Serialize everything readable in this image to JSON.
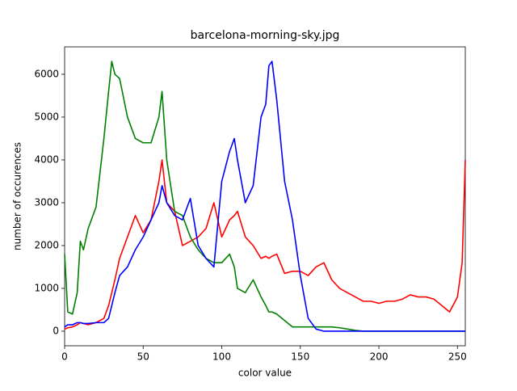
{
  "chart_data": {
    "type": "line",
    "title": "barcelona-morning-sky.jpg",
    "x_label": "color value",
    "y_label": "number of occurences",
    "x": [
      0,
      2,
      5,
      8,
      10,
      12,
      15,
      20,
      25,
      28,
      30,
      32,
      35,
      40,
      45,
      50,
      55,
      60,
      62,
      65,
      70,
      75,
      80,
      85,
      90,
      95,
      100,
      105,
      108,
      110,
      115,
      120,
      125,
      128,
      130,
      132,
      135,
      140,
      145,
      150,
      155,
      160,
      165,
      170,
      175,
      180,
      185,
      190,
      195,
      200,
      205,
      210,
      215,
      220,
      225,
      230,
      235,
      240,
      245,
      250,
      253,
      255
    ],
    "series": [
      {
        "color": "#ff0000",
        "values": [
          50,
          80,
          100,
          150,
          200,
          180,
          150,
          200,
          300,
          600,
          900,
          1200,
          1700,
          2200,
          2700,
          2300,
          2600,
          3500,
          4000,
          3000,
          2800,
          2000,
          2100,
          2200,
          2400,
          3000,
          2200,
          2600,
          2700,
          2800,
          2200,
          2000,
          1700,
          1750,
          1700,
          1750,
          1800,
          1350,
          1400,
          1400,
          1300,
          1500,
          1600,
          1200,
          1000,
          900,
          800,
          700,
          700,
          650,
          700,
          700,
          750,
          850,
          800,
          800,
          750,
          600,
          450,
          800,
          1600,
          4000
        ]
      },
      {
        "color": "#008000",
        "values": [
          1800,
          450,
          400,
          900,
          2100,
          1900,
          2400,
          2900,
          4500,
          5600,
          6300,
          6000,
          5900,
          5000,
          4500,
          4400,
          4400,
          5000,
          5600,
          4000,
          2800,
          2700,
          2200,
          1900,
          1700,
          1600,
          1600,
          1800,
          1500,
          1000,
          900,
          1200,
          800,
          600,
          450,
          450,
          400,
          250,
          100,
          100,
          100,
          100,
          100,
          100,
          80,
          50,
          20,
          0,
          0,
          0,
          0,
          0,
          0,
          0,
          0,
          0,
          0,
          0,
          0,
          0,
          0,
          0
        ]
      },
      {
        "color": "#0000ff",
        "values": [
          100,
          150,
          150,
          200,
          200,
          180,
          180,
          200,
          200,
          300,
          600,
          900,
          1300,
          1500,
          1900,
          2200,
          2600,
          3000,
          3400,
          3000,
          2700,
          2600,
          3100,
          2000,
          1700,
          1500,
          3500,
          4200,
          4500,
          4000,
          3000,
          3400,
          5000,
          5300,
          6200,
          6300,
          5400,
          3500,
          2600,
          1300,
          300,
          50,
          0,
          0,
          0,
          0,
          0,
          0,
          0,
          0,
          0,
          0,
          0,
          0,
          0,
          0,
          0,
          0,
          0,
          0,
          0,
          0
        ]
      }
    ],
    "xlim": [
      0,
      255
    ],
    "ylim": [
      -340,
      6640
    ],
    "xticks": [
      0,
      50,
      100,
      150,
      200,
      250
    ],
    "yticks": [
      0,
      1000,
      2000,
      3000,
      4000,
      5000,
      6000
    ]
  }
}
